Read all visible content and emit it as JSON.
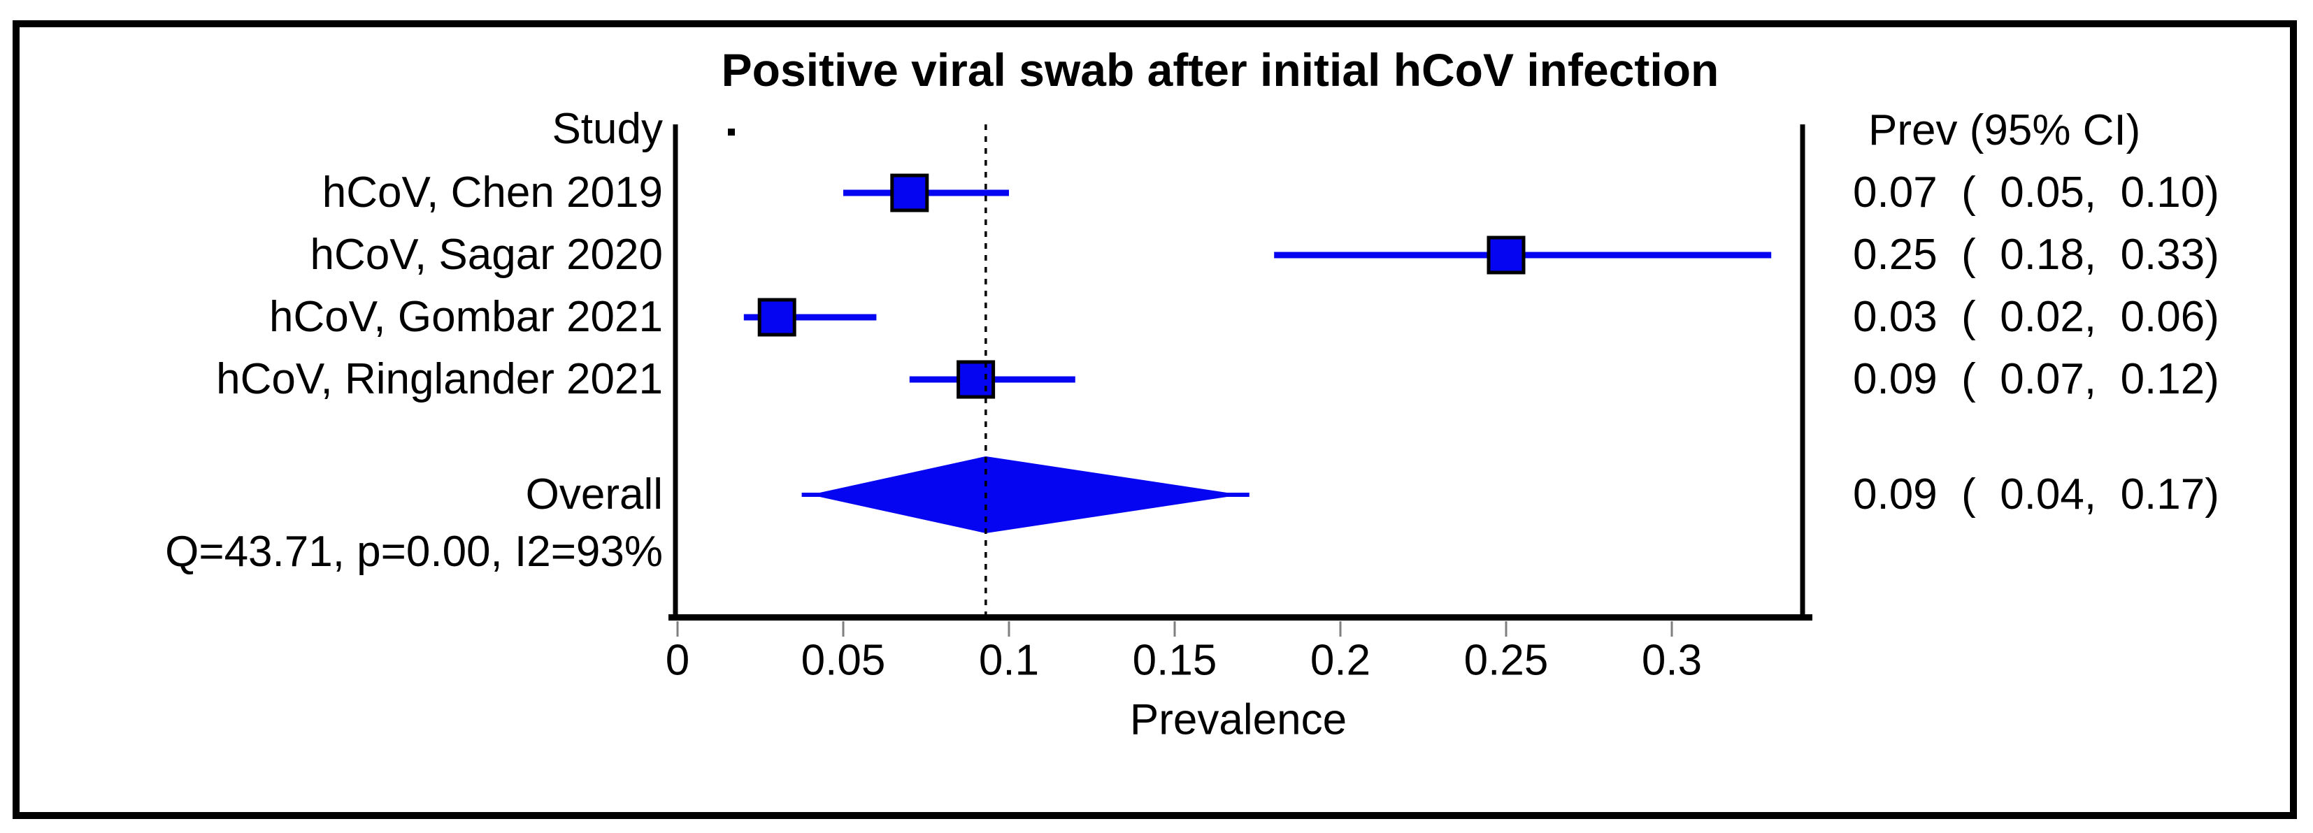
{
  "title": "Positive viral swab after initial hCoV infection",
  "columns": {
    "study": "Study",
    "prevalence": "Prev (95% CI)"
  },
  "chart_data": {
    "type": "forest",
    "title": "Positive viral swab after initial hCoV infection",
    "xlabel": "Prevalence",
    "xlim": [
      0,
      0.34
    ],
    "x_tick_labels": [
      "0",
      "0.05",
      "0.1",
      "0.15",
      "0.2",
      "0.25",
      "0.3"
    ],
    "x_tick_values": [
      0,
      0.05,
      0.1,
      0.15,
      0.2,
      0.25,
      0.3
    ],
    "reference_line_x": 0.093,
    "grid": false,
    "studies": [
      {
        "label": "hCoV, Chen 2019",
        "est": 0.07,
        "lo": 0.05,
        "hi": 0.1,
        "ci_text": "0.07  (  0.05,  0.10)"
      },
      {
        "label": "hCoV, Sagar 2020",
        "est": 0.25,
        "lo": 0.18,
        "hi": 0.33,
        "ci_text": "0.25  (  0.18,  0.33)"
      },
      {
        "label": "hCoV, Gombar 2021",
        "est": 0.03,
        "lo": 0.02,
        "hi": 0.06,
        "ci_text": "0.03  (  0.02,  0.06)"
      },
      {
        "label": "hCoV, Ringlander 2021",
        "est": 0.09,
        "lo": 0.07,
        "hi": 0.12,
        "ci_text": "0.09  (  0.07,  0.12)"
      }
    ],
    "overall": {
      "label": "Overall",
      "est": 0.09,
      "lo": 0.04,
      "hi": 0.17,
      "ci_text": "0.09  (  0.04,  0.17)"
    },
    "heterogeneity_text": "Q=43.71, p=0.00, I2=93%",
    "marker_color": "#0505f2",
    "axis_color": "#000000",
    "tick_color": "#7f7f7f"
  }
}
